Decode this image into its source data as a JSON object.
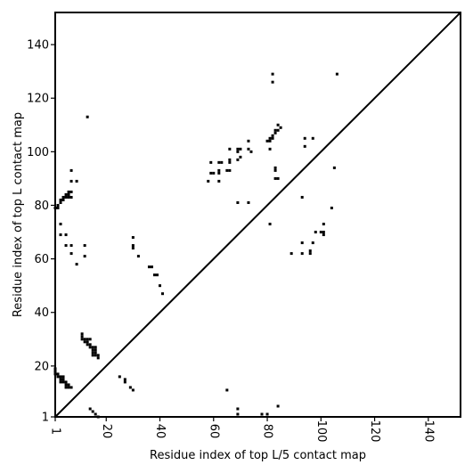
{
  "chart_data": {
    "type": "scatter",
    "xlabel": "Residue index of top L/5 contact map",
    "ylabel": "Residue index of top L contact map",
    "xlim": [
      1,
      152
    ],
    "ylim": [
      1,
      152
    ],
    "x_ticks": [
      1,
      20,
      40,
      60,
      80,
      100,
      120,
      140
    ],
    "y_ticks": [
      1,
      20,
      40,
      60,
      80,
      100,
      120,
      140
    ],
    "grid": false,
    "diagonal_line": true,
    "marker_color": "#000000",
    "upper_triangle_points": [
      [
        1,
        79
      ],
      [
        2,
        79
      ],
      [
        2,
        80
      ],
      [
        3,
        81
      ],
      [
        3,
        82
      ],
      [
        4,
        82
      ],
      [
        4,
        83
      ],
      [
        5,
        83
      ],
      [
        5,
        84
      ],
      [
        6,
        84
      ],
      [
        6,
        85
      ],
      [
        7,
        85
      ],
      [
        6,
        83
      ],
      [
        7,
        83
      ],
      [
        3,
        73
      ],
      [
        3,
        69
      ],
      [
        5,
        69
      ],
      [
        5,
        65
      ],
      [
        7,
        65
      ],
      [
        7,
        62
      ],
      [
        9,
        58
      ],
      [
        7,
        89
      ],
      [
        7,
        93
      ],
      [
        9,
        89
      ],
      [
        12,
        65
      ],
      [
        12,
        61
      ],
      [
        13,
        113
      ],
      [
        30,
        68
      ],
      [
        30,
        65
      ],
      [
        30,
        64
      ],
      [
        32,
        61
      ],
      [
        36,
        57
      ],
      [
        37,
        57
      ],
      [
        38,
        54
      ],
      [
        39,
        54
      ],
      [
        40,
        50
      ],
      [
        41,
        47
      ],
      [
        58,
        89
      ],
      [
        59,
        92
      ],
      [
        60,
        92
      ],
      [
        59,
        96
      ],
      [
        62,
        92
      ],
      [
        62,
        93
      ],
      [
        62,
        96
      ],
      [
        63,
        96
      ],
      [
        62,
        89
      ],
      [
        65,
        93
      ],
      [
        66,
        93
      ],
      [
        66,
        96
      ],
      [
        66,
        97
      ],
      [
        66,
        101
      ],
      [
        69,
        97
      ],
      [
        70,
        98
      ],
      [
        69,
        100
      ],
      [
        70,
        101
      ],
      [
        69,
        101
      ],
      [
        69,
        81
      ],
      [
        73,
        101
      ],
      [
        73,
        104
      ],
      [
        74,
        100
      ],
      [
        73,
        81
      ],
      [
        80,
        104
      ],
      [
        81,
        104
      ],
      [
        81,
        105
      ],
      [
        82,
        106
      ],
      [
        83,
        107
      ],
      [
        83,
        108
      ],
      [
        84,
        108
      ],
      [
        85,
        109
      ],
      [
        84,
        110
      ],
      [
        82,
        105
      ],
      [
        81,
        101
      ],
      [
        83,
        94
      ],
      [
        83,
        93
      ],
      [
        83,
        90
      ],
      [
        84,
        90
      ],
      [
        82,
        126
      ],
      [
        82,
        129
      ],
      [
        81,
        73
      ],
      [
        89,
        62
      ],
      [
        93,
        62
      ],
      [
        93,
        66
      ],
      [
        93,
        83
      ],
      [
        94,
        102
      ],
      [
        94,
        105
      ],
      [
        97,
        105
      ],
      [
        96,
        63
      ],
      [
        96,
        62
      ],
      [
        97,
        66
      ],
      [
        98,
        70
      ],
      [
        100,
        70
      ],
      [
        101,
        70
      ],
      [
        101,
        69
      ],
      [
        101,
        73
      ],
      [
        104,
        79
      ],
      [
        105,
        94
      ],
      [
        106,
        129
      ]
    ],
    "lower_triangle_points": [
      [
        1,
        19
      ],
      [
        1,
        18
      ],
      [
        1,
        17
      ],
      [
        2,
        17
      ],
      [
        2,
        16
      ],
      [
        3,
        16
      ],
      [
        3,
        15
      ],
      [
        3,
        14
      ],
      [
        4,
        14
      ],
      [
        4,
        15
      ],
      [
        4,
        16
      ],
      [
        5,
        14
      ],
      [
        5,
        13
      ],
      [
        5,
        12
      ],
      [
        6,
        12
      ],
      [
        6,
        13
      ],
      [
        7,
        12
      ],
      [
        11,
        32
      ],
      [
        11,
        31
      ],
      [
        11,
        30
      ],
      [
        12,
        30
      ],
      [
        12,
        29
      ],
      [
        13,
        30
      ],
      [
        13,
        29
      ],
      [
        13,
        28
      ],
      [
        14,
        30
      ],
      [
        14,
        28
      ],
      [
        14,
        27
      ],
      [
        15,
        27
      ],
      [
        15,
        26
      ],
      [
        15,
        25
      ],
      [
        15,
        24
      ],
      [
        16,
        24
      ],
      [
        16,
        25
      ],
      [
        16,
        26
      ],
      [
        16,
        27
      ],
      [
        17,
        23
      ],
      [
        17,
        24
      ],
      [
        14,
        4
      ],
      [
        15,
        3
      ],
      [
        16,
        2
      ],
      [
        17,
        1
      ],
      [
        25,
        16
      ],
      [
        27,
        15
      ],
      [
        27,
        14
      ],
      [
        29,
        12
      ],
      [
        30,
        11
      ],
      [
        65,
        11
      ],
      [
        69,
        2
      ],
      [
        69,
        4
      ],
      [
        78,
        2
      ],
      [
        80,
        2
      ],
      [
        84,
        5
      ]
    ]
  }
}
